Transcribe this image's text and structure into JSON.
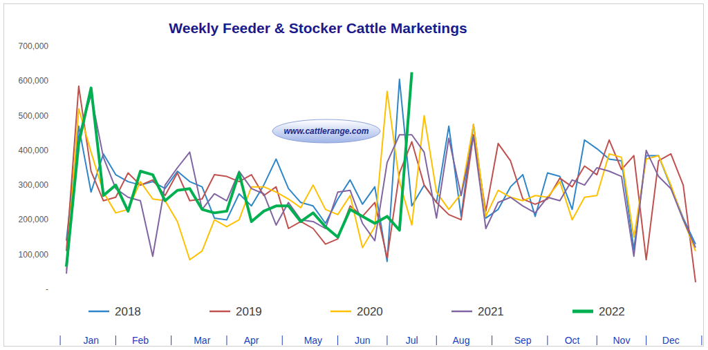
{
  "chart_data": {
    "type": "line",
    "title": "Weekly Feeder & Stocker Cattle Marketings",
    "annotation": "www.cattlerange.com",
    "categories": [
      null,
      null,
      "Jan",
      null,
      null,
      null,
      "Feb",
      null,
      null,
      null,
      null,
      "Mar",
      null,
      null,
      null,
      "Apr",
      null,
      null,
      null,
      null,
      "May",
      null,
      null,
      null,
      "Jun",
      null,
      null,
      null,
      "Jul",
      null,
      null,
      null,
      "Aug",
      null,
      null,
      null,
      null,
      "Sep",
      null,
      null,
      null,
      "Oct",
      null,
      null,
      null,
      "Nov",
      null,
      null,
      null,
      "Dec",
      null,
      null
    ],
    "ylim": [
      0,
      700000
    ],
    "yticks": [
      {
        "value": 0,
        "label": "-"
      },
      {
        "value": 100000,
        "label": "100,000"
      },
      {
        "value": 200000,
        "label": "200,000"
      },
      {
        "value": 300000,
        "label": "300,000"
      },
      {
        "value": 400000,
        "label": "400,000"
      },
      {
        "value": 500000,
        "label": "500,000"
      },
      {
        "value": 600000,
        "label": "600,000"
      },
      {
        "value": 700000,
        "label": "700,000"
      }
    ],
    "grid": false,
    "legend": "bottom",
    "series": [
      {
        "name": "2018",
        "color": "#2e86c8",
        "values": [
          140000,
          470000,
          280000,
          390000,
          330000,
          310000,
          300000,
          310000,
          290000,
          340000,
          310000,
          295000,
          205000,
          200000,
          275000,
          240000,
          300000,
          375000,
          290000,
          250000,
          240000,
          190000,
          260000,
          315000,
          245000,
          295000,
          80000,
          605000,
          240000,
          300000,
          250000,
          470000,
          210000,
          475000,
          205000,
          230000,
          295000,
          330000,
          210000,
          335000,
          325000,
          230000,
          430000,
          405000,
          375000,
          370000,
          115000,
          385000,
          385000,
          295000,
          205000,
          130000
        ]
      },
      {
        "name": "2019",
        "color": "#c0504d",
        "values": [
          110000,
          585000,
          340000,
          255000,
          265000,
          335000,
          300000,
          315000,
          270000,
          335000,
          255000,
          260000,
          330000,
          325000,
          310000,
          330000,
          270000,
          295000,
          175000,
          195000,
          175000,
          130000,
          145000,
          240000,
          210000,
          250000,
          90000,
          335000,
          425000,
          300000,
          250000,
          215000,
          200000,
          445000,
          225000,
          420000,
          370000,
          260000,
          245000,
          260000,
          320000,
          295000,
          355000,
          330000,
          430000,
          345000,
          385000,
          85000,
          370000,
          390000,
          300000,
          20000
        ]
      },
      {
        "name": "2020",
        "color": "#ffc000",
        "values": [
          55000,
          520000,
          395000,
          280000,
          220000,
          230000,
          310000,
          260000,
          255000,
          195000,
          85000,
          110000,
          200000,
          180000,
          200000,
          295000,
          295000,
          280000,
          260000,
          235000,
          300000,
          230000,
          215000,
          270000,
          120000,
          180000,
          570000,
          310000,
          185000,
          500000,
          280000,
          230000,
          275000,
          475000,
          210000,
          285000,
          265000,
          255000,
          270000,
          265000,
          310000,
          200000,
          265000,
          270000,
          390000,
          380000,
          150000,
          375000,
          385000,
          300000,
          200000,
          110000
        ]
      },
      {
        "name": "2021",
        "color": "#8064a2",
        "values": [
          45000,
          440000,
          560000,
          380000,
          290000,
          265000,
          255000,
          95000,
          300000,
          350000,
          395000,
          230000,
          275000,
          255000,
          340000,
          290000,
          275000,
          185000,
          250000,
          200000,
          195000,
          175000,
          280000,
          285000,
          190000,
          140000,
          365000,
          445000,
          445000,
          395000,
          205000,
          435000,
          270000,
          440000,
          175000,
          250000,
          265000,
          240000,
          220000,
          265000,
          255000,
          315000,
          300000,
          350000,
          340000,
          325000,
          95000,
          400000,
          325000,
          290000,
          200000,
          120000
        ]
      },
      {
        "name": "2022",
        "color": "#00b050",
        "values": [
          65000,
          420000,
          580000,
          270000,
          300000,
          225000,
          340000,
          330000,
          255000,
          285000,
          290000,
          230000,
          220000,
          225000,
          335000,
          195000,
          225000,
          240000,
          240000,
          195000,
          220000,
          180000,
          150000,
          230000,
          210000,
          190000,
          210000,
          170000,
          625000,
          null,
          null,
          null,
          null,
          null,
          null,
          null,
          null,
          null,
          null,
          null,
          null,
          null,
          null,
          null,
          null,
          null,
          null,
          null,
          null,
          null,
          null,
          null
        ]
      }
    ]
  }
}
